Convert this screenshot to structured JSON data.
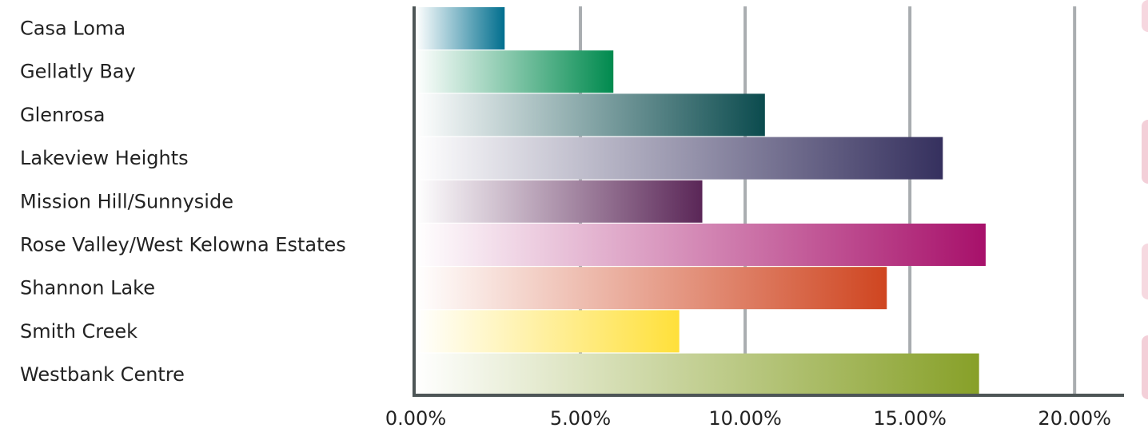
{
  "chart_data": {
    "type": "bar",
    "orientation": "horizontal",
    "categories": [
      "Casa Loma",
      "Gellatly Bay",
      "Glenrosa",
      "Lakeview Heights",
      "Mission Hill/Sunnyside",
      "Rose Valley/West Kelowna Estates",
      "Shannon Lake",
      "Smith Creek",
      "Westbank Centre"
    ],
    "values": [
      2.7,
      6.0,
      10.6,
      16.0,
      8.7,
      17.3,
      14.3,
      8.0,
      17.1
    ],
    "colors": [
      "#006e8e",
      "#008a4e",
      "#0b4b4e",
      "#35305e",
      "#5a2657",
      "#a7106a",
      "#cf4520",
      "#ffe03a",
      "#87a028"
    ],
    "xlim": [
      0,
      21.5
    ],
    "xticks": [
      0,
      5,
      10,
      15,
      20
    ],
    "xtick_labels": [
      "0.00%",
      "5.00%",
      "10.00%",
      "15.00%",
      "20.00%"
    ],
    "grid": "vertical",
    "legend": "none",
    "title": "",
    "xlabel": "",
    "ylabel": ""
  },
  "colors": {
    "axis": "#4d5556",
    "grid": "#a9adb0",
    "text": "#222222",
    "bar_fade": "#ffffff"
  }
}
